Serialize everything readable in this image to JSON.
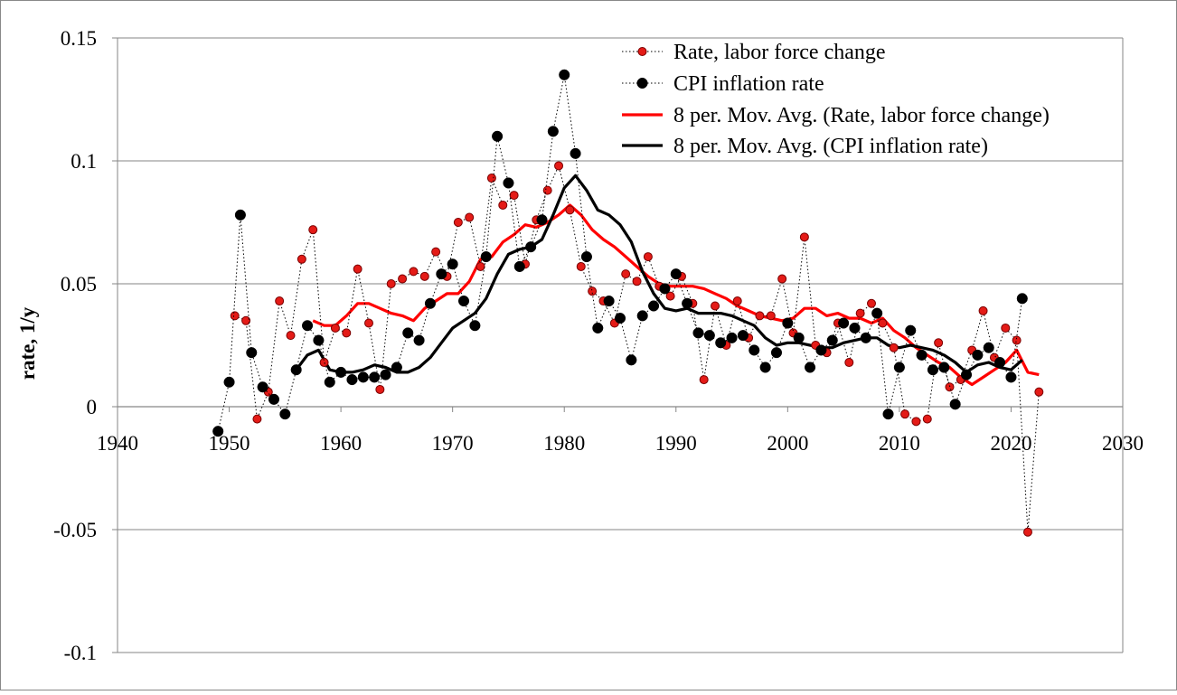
{
  "chart_data": {
    "type": "line",
    "title": "",
    "xlabel": "",
    "ylabel": "rate, 1/y",
    "xlim": [
      1940,
      2030
    ],
    "ylim": [
      -0.1,
      0.15
    ],
    "x_ticks": [
      1940,
      1950,
      1960,
      1970,
      1980,
      1990,
      2000,
      2010,
      2020,
      2030
    ],
    "x_tick_labels": [
      "1940",
      "1950",
      "1960",
      "1970",
      "1980",
      "1990",
      "2000",
      "2010",
      "2020",
      "2030"
    ],
    "y_ticks": [
      0.15,
      0.1,
      0.05,
      0,
      -0.05,
      -0.1
    ],
    "y_tick_labels": [
      "0.15",
      "0.1",
      "0.05",
      "0",
      "-0.05",
      "-0.1"
    ],
    "grid": "horizontal",
    "legend_position": "top-right",
    "series": [
      {
        "name": "Rate, labor force change",
        "style": "dotted-markers",
        "color": "#e41b17",
        "x": [
          1950.5,
          1951.5,
          1952.5,
          1953.5,
          1954.5,
          1955.5,
          1956.5,
          1957.5,
          1958.5,
          1959.5,
          1960.5,
          1961.5,
          1962.5,
          1963.5,
          1964.5,
          1965.5,
          1966.5,
          1967.5,
          1968.5,
          1969.5,
          1970.5,
          1971.5,
          1972.5,
          1973.5,
          1974.5,
          1975.5,
          1976.5,
          1977.5,
          1978.5,
          1979.5,
          1980.5,
          1981.5,
          1982.5,
          1983.5,
          1984.5,
          1985.5,
          1986.5,
          1987.5,
          1988.5,
          1989.5,
          1990.5,
          1991.5,
          1992.5,
          1993.5,
          1994.5,
          1995.5,
          1996.5,
          1997.5,
          1998.5,
          1999.5,
          2000.5,
          2001.5,
          2002.5,
          2003.5,
          2004.5,
          2005.5,
          2006.5,
          2007.5,
          2008.5,
          2009.5,
          2010.5,
          2011.5,
          2012.5,
          2013.5,
          2014.5,
          2015.5,
          2016.5,
          2017.5,
          2018.5,
          2019.5,
          2020.5,
          2021.5,
          2022.5
        ],
        "values": [
          0.037,
          0.035,
          -0.005,
          0.006,
          0.043,
          0.029,
          0.06,
          0.072,
          0.018,
          0.032,
          0.03,
          0.056,
          0.034,
          0.007,
          0.05,
          0.052,
          0.055,
          0.053,
          0.063,
          0.053,
          0.075,
          0.077,
          0.057,
          0.093,
          0.082,
          0.086,
          0.058,
          0.076,
          0.088,
          0.098,
          0.08,
          0.057,
          0.047,
          0.043,
          0.034,
          0.054,
          0.051,
          0.061,
          0.049,
          0.045,
          0.053,
          0.042,
          0.011,
          0.041,
          0.025,
          0.043,
          0.028,
          0.037,
          0.037,
          0.052,
          0.03,
          0.069,
          0.025,
          0.022,
          0.034,
          0.018,
          0.038,
          0.042,
          0.034,
          0.024,
          -0.003,
          -0.006,
          -0.005,
          0.026,
          0.008,
          0.011,
          0.023,
          0.039,
          0.02,
          0.032,
          0.027,
          -0.051,
          0.006
        ]
      },
      {
        "name": "CPI inflation rate",
        "style": "dotted-markers",
        "color": "#000000",
        "x": [
          1949,
          1950,
          1951,
          1952,
          1953,
          1954,
          1955,
          1956,
          1957,
          1958,
          1959,
          1960,
          1961,
          1962,
          1963,
          1964,
          1965,
          1966,
          1967,
          1968,
          1969,
          1970,
          1971,
          1972,
          1973,
          1974,
          1975,
          1976,
          1977,
          1978,
          1979,
          1980,
          1981,
          1982,
          1983,
          1984,
          1985,
          1986,
          1987,
          1988,
          1989,
          1990,
          1991,
          1992,
          1993,
          1994,
          1995,
          1996,
          1997,
          1998,
          1999,
          2000,
          2001,
          2002,
          2003,
          2004,
          2005,
          2006,
          2007,
          2008,
          2009,
          2010,
          2011,
          2012,
          2013,
          2014,
          2015,
          2016,
          2017,
          2018,
          2019,
          2020,
          2021
        ],
        "values": [
          -0.01,
          0.01,
          0.078,
          0.022,
          0.008,
          0.003,
          -0.003,
          0.015,
          0.033,
          0.027,
          0.01,
          0.014,
          0.011,
          0.012,
          0.012,
          0.013,
          0.016,
          0.03,
          0.027,
          0.042,
          0.054,
          0.058,
          0.043,
          0.033,
          0.061,
          0.11,
          0.091,
          0.057,
          0.065,
          0.076,
          0.112,
          0.135,
          0.103,
          0.061,
          0.032,
          0.043,
          0.036,
          0.019,
          0.037,
          0.041,
          0.048,
          0.054,
          0.042,
          0.03,
          0.029,
          0.026,
          0.028,
          0.029,
          0.023,
          0.016,
          0.022,
          0.034,
          0.028,
          0.016,
          0.023,
          0.027,
          0.034,
          0.032,
          0.028,
          0.038,
          -0.003,
          0.016,
          0.031,
          0.021,
          0.015,
          0.016,
          0.001,
          0.013,
          0.021,
          0.024,
          0.018,
          0.012,
          0.044
        ]
      },
      {
        "name": "8 per. Mov. Avg. (Rate, labor force change)",
        "style": "line",
        "color": "#ff0000",
        "x": [
          1957.5,
          1958.5,
          1959.5,
          1960.5,
          1961.5,
          1962.5,
          1963.5,
          1964.5,
          1965.5,
          1966.5,
          1967.5,
          1968.5,
          1969.5,
          1970.5,
          1971.5,
          1972.5,
          1973.5,
          1974.5,
          1975.5,
          1976.5,
          1977.5,
          1978.5,
          1979.5,
          1980.5,
          1981.5,
          1982.5,
          1983.5,
          1984.5,
          1985.5,
          1986.5,
          1987.5,
          1988.5,
          1989.5,
          1990.5,
          1991.5,
          1992.5,
          1993.5,
          1994.5,
          1995.5,
          1996.5,
          1997.5,
          1998.5,
          1999.5,
          2000.5,
          2001.5,
          2002.5,
          2003.5,
          2004.5,
          2005.5,
          2006.5,
          2007.5,
          2008.5,
          2009.5,
          2010.5,
          2011.5,
          2012.5,
          2013.5,
          2014.5,
          2015.5,
          2016.5,
          2017.5,
          2018.5,
          2019.5,
          2020.5,
          2021.5,
          2022.5
        ],
        "values": [
          0.035,
          0.033,
          0.033,
          0.037,
          0.042,
          0.042,
          0.04,
          0.038,
          0.037,
          0.035,
          0.04,
          0.043,
          0.046,
          0.046,
          0.051,
          0.06,
          0.061,
          0.067,
          0.07,
          0.074,
          0.073,
          0.075,
          0.078,
          0.082,
          0.078,
          0.072,
          0.068,
          0.065,
          0.061,
          0.057,
          0.053,
          0.05,
          0.049,
          0.049,
          0.049,
          0.048,
          0.046,
          0.044,
          0.041,
          0.039,
          0.037,
          0.036,
          0.035,
          0.036,
          0.04,
          0.04,
          0.037,
          0.038,
          0.036,
          0.036,
          0.034,
          0.036,
          0.031,
          0.028,
          0.024,
          0.021,
          0.018,
          0.016,
          0.012,
          0.009,
          0.012,
          0.015,
          0.018,
          0.023,
          0.014,
          0.013
        ]
      },
      {
        "name": "8 per. Mov. Avg. (CPI inflation rate)",
        "style": "line",
        "color": "#000000",
        "x": [
          1956,
          1957,
          1958,
          1959,
          1960,
          1961,
          1962,
          1963,
          1964,
          1965,
          1966,
          1967,
          1968,
          1969,
          1970,
          1971,
          1972,
          1973,
          1974,
          1975,
          1976,
          1977,
          1978,
          1979,
          1980,
          1981,
          1982,
          1983,
          1984,
          1985,
          1986,
          1987,
          1988,
          1989,
          1990,
          1991,
          1992,
          1993,
          1994,
          1995,
          1996,
          1997,
          1998,
          1999,
          2000,
          2001,
          2002,
          2003,
          2004,
          2005,
          2006,
          2007,
          2008,
          2009,
          2010,
          2011,
          2012,
          2013,
          2014,
          2015,
          2016,
          2017,
          2018,
          2019,
          2020,
          2021
        ],
        "values": [
          0.015,
          0.021,
          0.023,
          0.015,
          0.014,
          0.014,
          0.015,
          0.017,
          0.016,
          0.014,
          0.014,
          0.016,
          0.02,
          0.026,
          0.032,
          0.035,
          0.038,
          0.044,
          0.054,
          0.062,
          0.064,
          0.065,
          0.068,
          0.078,
          0.089,
          0.094,
          0.088,
          0.08,
          0.078,
          0.074,
          0.067,
          0.055,
          0.046,
          0.04,
          0.039,
          0.04,
          0.038,
          0.038,
          0.038,
          0.037,
          0.035,
          0.033,
          0.028,
          0.025,
          0.026,
          0.026,
          0.025,
          0.024,
          0.024,
          0.026,
          0.027,
          0.028,
          0.028,
          0.025,
          0.024,
          0.025,
          0.024,
          0.023,
          0.021,
          0.018,
          0.014,
          0.017,
          0.018,
          0.016,
          0.015,
          0.019
        ]
      }
    ]
  }
}
